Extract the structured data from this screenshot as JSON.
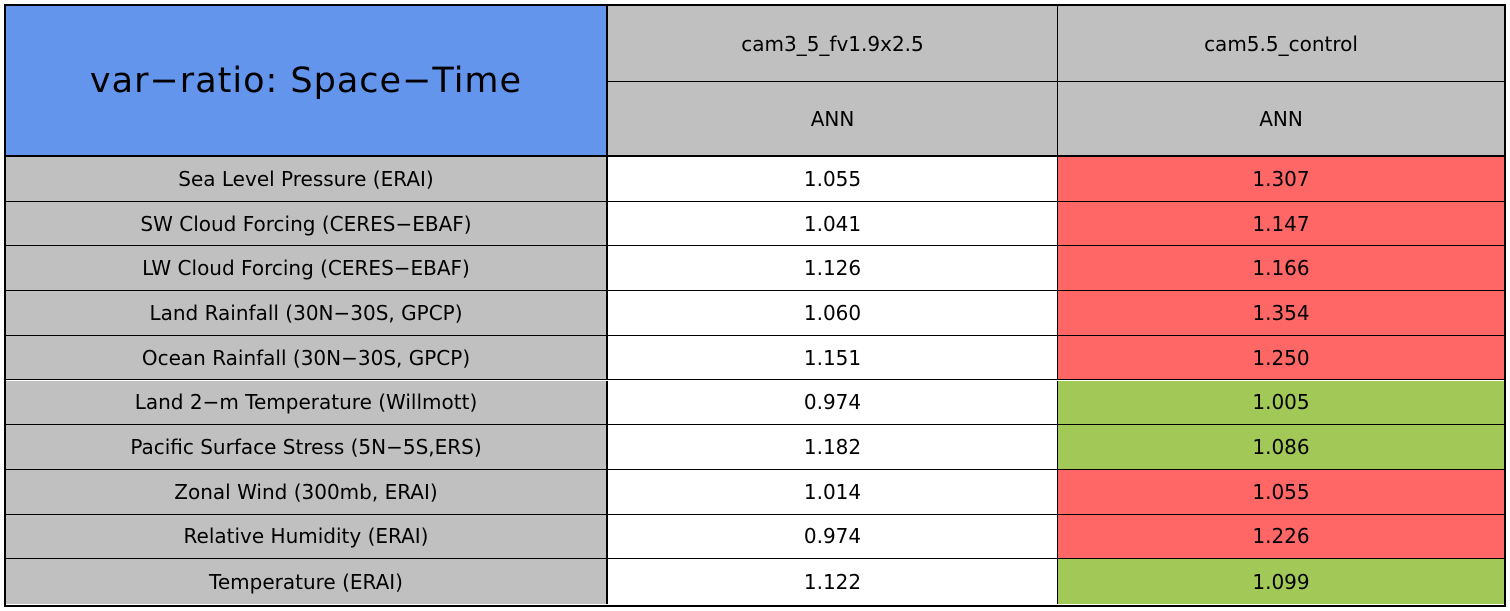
{
  "chart_data": {
    "type": "table",
    "title": "var−ratio: Space−Time",
    "columns": [
      "cam3_5_fv1.9x2.5",
      "cam5.5_control"
    ],
    "seasons": [
      "ANN",
      "ANN"
    ],
    "rows": [
      {
        "label": "Sea Level Pressure (ERAI)",
        "values": [
          "1.055",
          "1.307"
        ],
        "colors": [
          "#ffffff",
          "#ff6666"
        ]
      },
      {
        "label": "SW Cloud Forcing (CERES−EBAF)",
        "values": [
          "1.041",
          "1.147"
        ],
        "colors": [
          "#ffffff",
          "#ff6666"
        ]
      },
      {
        "label": "LW Cloud Forcing (CERES−EBAF)",
        "values": [
          "1.126",
          "1.166"
        ],
        "colors": [
          "#ffffff",
          "#ff6666"
        ]
      },
      {
        "label": "Land Rainfall (30N−30S, GPCP)",
        "values": [
          "1.060",
          "1.354"
        ],
        "colors": [
          "#ffffff",
          "#ff6666"
        ]
      },
      {
        "label": "Ocean Rainfall (30N−30S, GPCP)",
        "values": [
          "1.151",
          "1.250"
        ],
        "colors": [
          "#ffffff",
          "#ff6666"
        ]
      },
      {
        "label": "Land 2−m Temperature (Willmott)",
        "values": [
          "0.974",
          "1.005"
        ],
        "colors": [
          "#ffffff",
          "#a2c957"
        ]
      },
      {
        "label": "Pacific Surface Stress (5N−5S,ERS)",
        "values": [
          "1.182",
          "1.086"
        ],
        "colors": [
          "#ffffff",
          "#a2c957"
        ]
      },
      {
        "label": "Zonal Wind (300mb, ERAI)",
        "values": [
          "1.014",
          "1.055"
        ],
        "colors": [
          "#ffffff",
          "#ff6666"
        ]
      },
      {
        "label": "Relative Humidity (ERAI)",
        "values": [
          "0.974",
          "1.226"
        ],
        "colors": [
          "#ffffff",
          "#ff6666"
        ]
      },
      {
        "label": "Temperature (ERAI)",
        "values": [
          "1.122",
          "1.099"
        ],
        "colors": [
          "#ffffff",
          "#a2c957"
        ]
      }
    ]
  }
}
